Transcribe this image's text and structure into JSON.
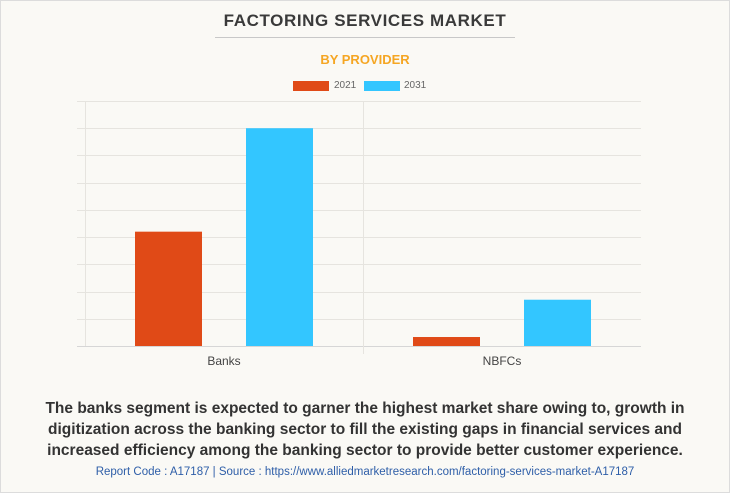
{
  "chart_data": {
    "type": "bar",
    "title": "FACTORING SERVICES MARKET",
    "subtitle": "BY PROVIDER",
    "xlabel": "",
    "ylabel": "",
    "categories": [
      "Banks",
      "NBFCs"
    ],
    "series": [
      {
        "name": "2021",
        "color": "#e04a17",
        "values": [
          4.2,
          0.33
        ]
      },
      {
        "name": "2031",
        "color": "#33c6ff",
        "values": [
          8.0,
          1.7
        ]
      }
    ],
    "ylim": [
      0,
      9
    ],
    "y_gridline_count": 9,
    "y_tick_labels_shown": false,
    "grid": true,
    "legend_position": "top-center"
  },
  "legend": {
    "items": [
      {
        "label": "2021",
        "color": "#e04a17"
      },
      {
        "label": "2031",
        "color": "#33c6ff"
      }
    ]
  },
  "description": "The banks segment is expected to garner the highest market share owing to, growth in digitization across the banking sector to fill the existing gaps in financial services and increased efficiency among the banking sector to provide better customer experience.",
  "source_line": "Report Code : A17187  |  Source : https://www.alliedmarketresearch.com/factoring-services-market-A17187",
  "colors": {
    "title": "#3a3a3a",
    "subtitle": "#f5a623",
    "source": "#2e5ea8",
    "background": "#faf9f5"
  }
}
